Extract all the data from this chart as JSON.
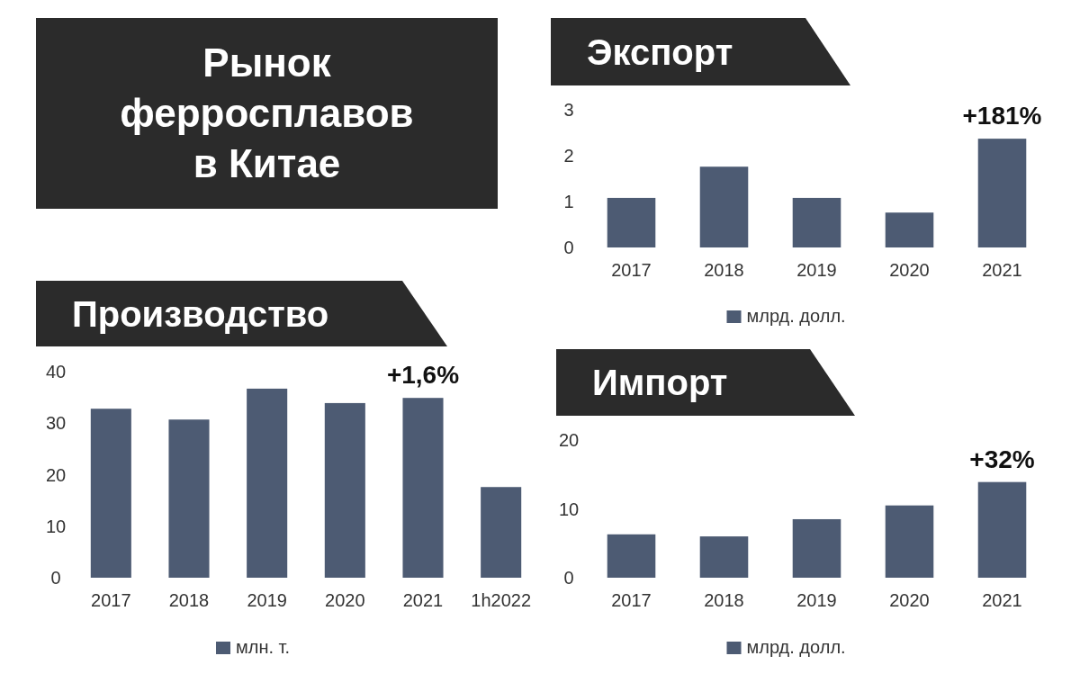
{
  "chart_data": [
    {
      "type": "other",
      "title": "Рынок ферросплавов в Китае"
    },
    {
      "type": "bar",
      "title": "Экспорт",
      "categories": [
        "2017",
        "2018",
        "2019",
        "2020",
        "2021"
      ],
      "series": [
        {
          "name": "млрд. долл.",
          "color": "#4d5b73",
          "values": [
            1.08,
            1.76,
            1.08,
            0.76,
            2.37
          ]
        }
      ],
      "ylim": [
        0,
        3
      ],
      "yticks": [
        0,
        1,
        2,
        3
      ],
      "legend": "bottom",
      "annotations": [
        {
          "text": "+181%",
          "x": "2021",
          "y": 2.37
        }
      ]
    },
    {
      "type": "bar",
      "title": "Производство",
      "categories": [
        "2017",
        "2018",
        "2019",
        "2020",
        "2021",
        "1h2022"
      ],
      "series": [
        {
          "name": "млн. т.",
          "color": "#4d5b73",
          "values": [
            32.8,
            30.7,
            36.7,
            33.9,
            34.9,
            17.6
          ]
        }
      ],
      "ylim": [
        0,
        40
      ],
      "yticks": [
        0,
        10,
        20,
        30,
        40
      ],
      "legend": "bottom",
      "annotations": [
        {
          "text": "+1,6%",
          "x": "2021",
          "y": 34.9
        }
      ]
    },
    {
      "type": "bar",
      "title": "Импорт",
      "categories": [
        "2017",
        "2018",
        "2019",
        "2020",
        "2021"
      ],
      "series": [
        {
          "name": "млрд. долл.",
          "color": "#4d5b73",
          "values": [
            6.3,
            6.0,
            8.5,
            10.5,
            13.9
          ]
        }
      ],
      "ylim": [
        0,
        20
      ],
      "yticks": [
        0,
        10,
        20
      ],
      "legend": "bottom",
      "annotations": [
        {
          "text": "+32%",
          "x": "2021",
          "y": 13.9
        }
      ]
    }
  ]
}
